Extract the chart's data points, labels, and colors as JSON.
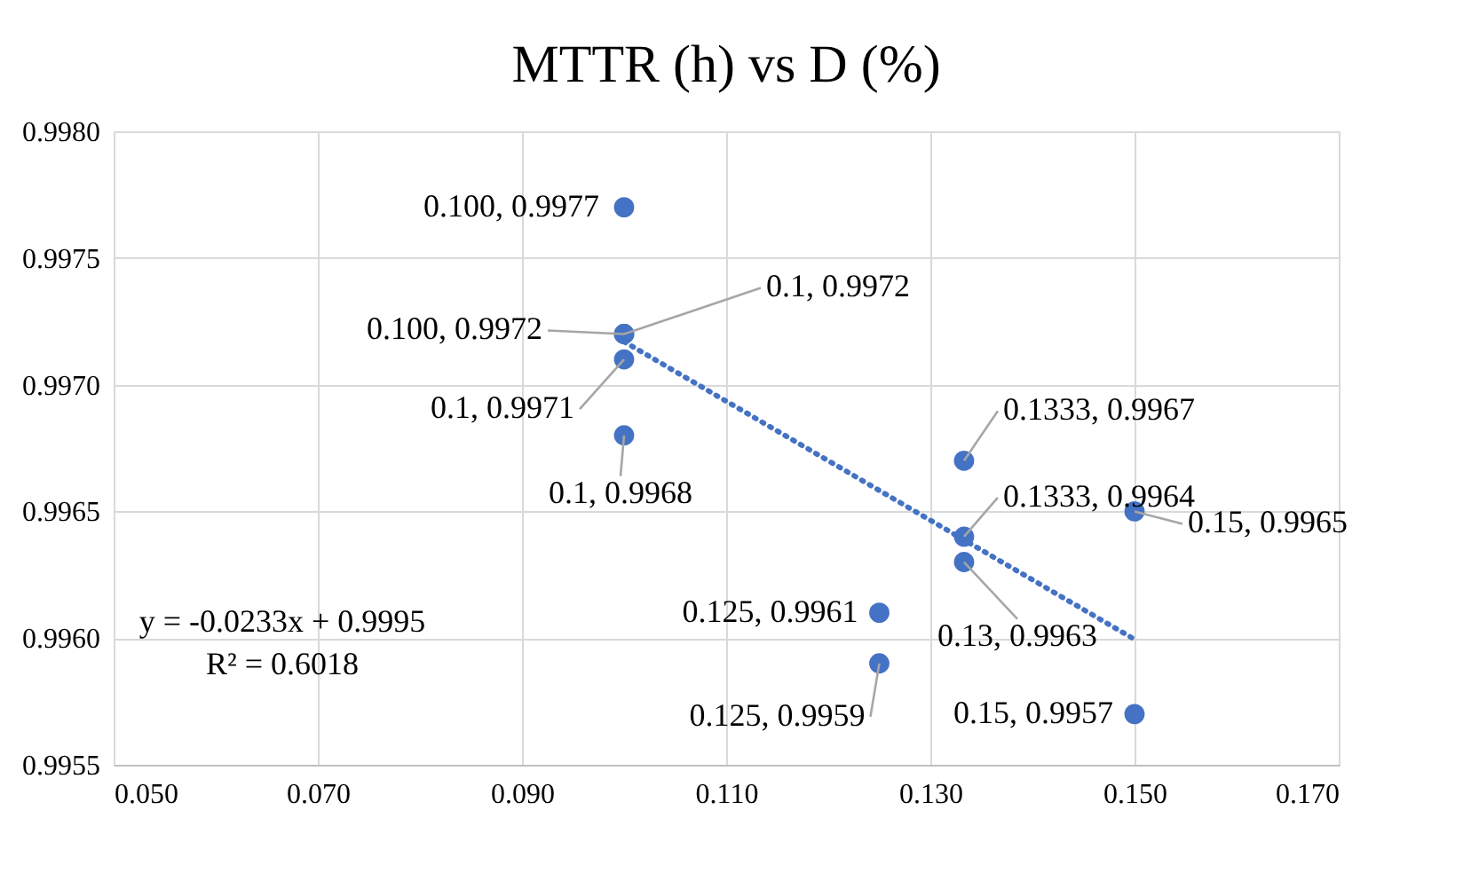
{
  "chart_data": {
    "type": "scatter",
    "title": "MTTR (h) vs D (%)",
    "xlim": [
      0.05,
      0.17
    ],
    "xticks": [
      {
        "value": 0.05,
        "label": "0.050"
      },
      {
        "value": 0.07,
        "label": "0.070"
      },
      {
        "value": 0.09,
        "label": "0.090"
      },
      {
        "value": 0.11,
        "label": "0.110"
      },
      {
        "value": 0.13,
        "label": "0.130"
      },
      {
        "value": 0.15,
        "label": "0.150"
      },
      {
        "value": 0.17,
        "label": "0.170"
      }
    ],
    "ylim": [
      0.9955,
      0.998
    ],
    "yticks": [
      {
        "value": 0.9955,
        "label": "0.9955"
      },
      {
        "value": 0.996,
        "label": "0.9960"
      },
      {
        "value": 0.9965,
        "label": "0.9965"
      },
      {
        "value": 0.997,
        "label": "0.9970"
      },
      {
        "value": 0.9975,
        "label": "0.9975"
      },
      {
        "value": 0.998,
        "label": "0.9980"
      }
    ],
    "grid": true,
    "marker": "circle",
    "series": [
      {
        "color": "#4472c4",
        "x": [
          0.1,
          0.1,
          0.1,
          0.1,
          0.1,
          0.1333,
          0.1333,
          0.1333,
          0.125,
          0.125,
          0.15,
          0.15
        ],
        "values": [
          0.9977,
          0.9972,
          0.9972,
          0.9971,
          0.9968,
          0.9967,
          0.9964,
          0.9963,
          0.9961,
          0.9959,
          0.9965,
          0.9957
        ],
        "value_labels": [
          "0.100, 0.9977",
          "0.1, 0.9972",
          "0.100, 0.9972",
          "0.1, 0.9971",
          "0.1, 0.9968",
          "0.1333, 0.9967",
          "0.1333, 0.9964",
          "0.13, 0.9963",
          "0.125, 0.9961",
          "0.125, 0.9959",
          "0.15, 0.9965",
          "0.15, 0.9957"
        ]
      },
      {
        "type": "line",
        "color": "#4472c4",
        "line_style": "dotted",
        "marker": "none",
        "x": [
          0.1,
          0.15
        ],
        "values": [
          0.99717,
          0.995995
        ]
      }
    ],
    "annotations": [
      "y = -0.0233x + 0.9995",
      "R² = 0.6018"
    ]
  }
}
